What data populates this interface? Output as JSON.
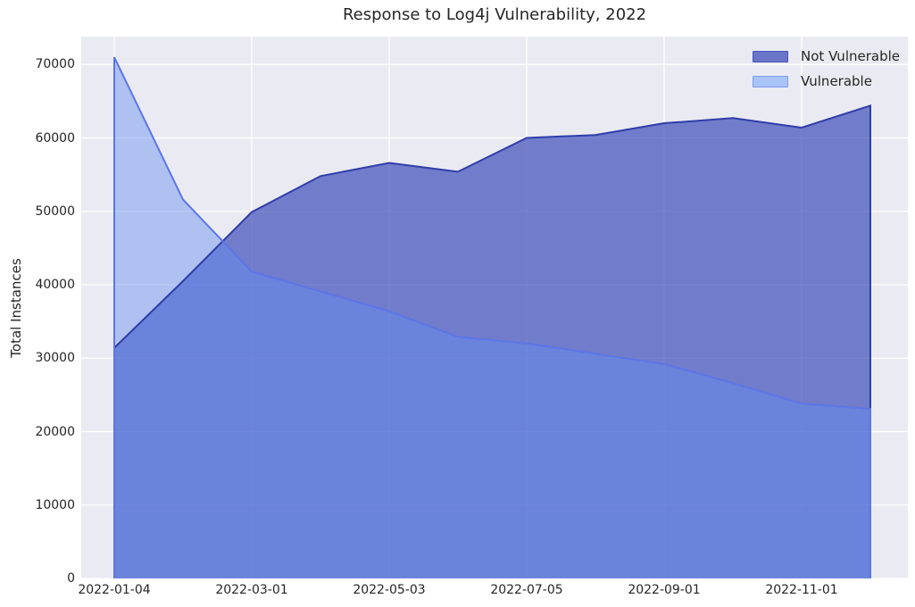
{
  "title": "Response to Log4j Vulnerability, 2022",
  "y_axis": {
    "label": "Total Instances"
  },
  "colors": {
    "figure_bg": "#ffffff",
    "plot_bg": "#eaeaf2",
    "grid": "#ffffff",
    "text": "#262626",
    "not_vulnerable_fill": "rgba(47,64,181,0.65)",
    "not_vulnerable_line": "#2f3da8",
    "vulnerable_fill": "rgba(98,141,240,0.44)",
    "vulnerable_line": "#5c76e8",
    "legend_not_vulnerable_swatch": "#6a74c8",
    "legend_not_vulnerable_border": "#4a55b8",
    "legend_vulnerable_swatch": "#a9c4f7",
    "legend_vulnerable_border": "#7f9cf0"
  },
  "chart_data": {
    "type": "area",
    "title": "Response to Log4j Vulnerability, 2022",
    "xlabel": "",
    "ylabel": "Total Instances",
    "n_points": 12,
    "x_tick_positions": [
      0,
      2,
      4,
      6,
      8,
      10
    ],
    "x_tick_labels": [
      "2022-01-04",
      "2022-03-01",
      "2022-05-03",
      "2022-07-05",
      "2022-09-01",
      "2022-11-01"
    ],
    "series": [
      {
        "name": "Not Vulnerable",
        "values": [
          31400,
          40500,
          49900,
          54800,
          56600,
          55400,
          60000,
          60400,
          62000,
          62700,
          61400,
          64400
        ]
      },
      {
        "name": "Vulnerable",
        "values": [
          71000,
          51600,
          41800,
          39100,
          36400,
          32900,
          32000,
          30600,
          29200,
          26600,
          23800,
          23100
        ]
      }
    ],
    "ylim": [
      0,
      73800
    ],
    "y_ticks": [
      0,
      10000,
      20000,
      30000,
      40000,
      50000,
      60000,
      70000
    ],
    "grid": true,
    "legend_position": "upper right",
    "areas_overlap": true
  }
}
